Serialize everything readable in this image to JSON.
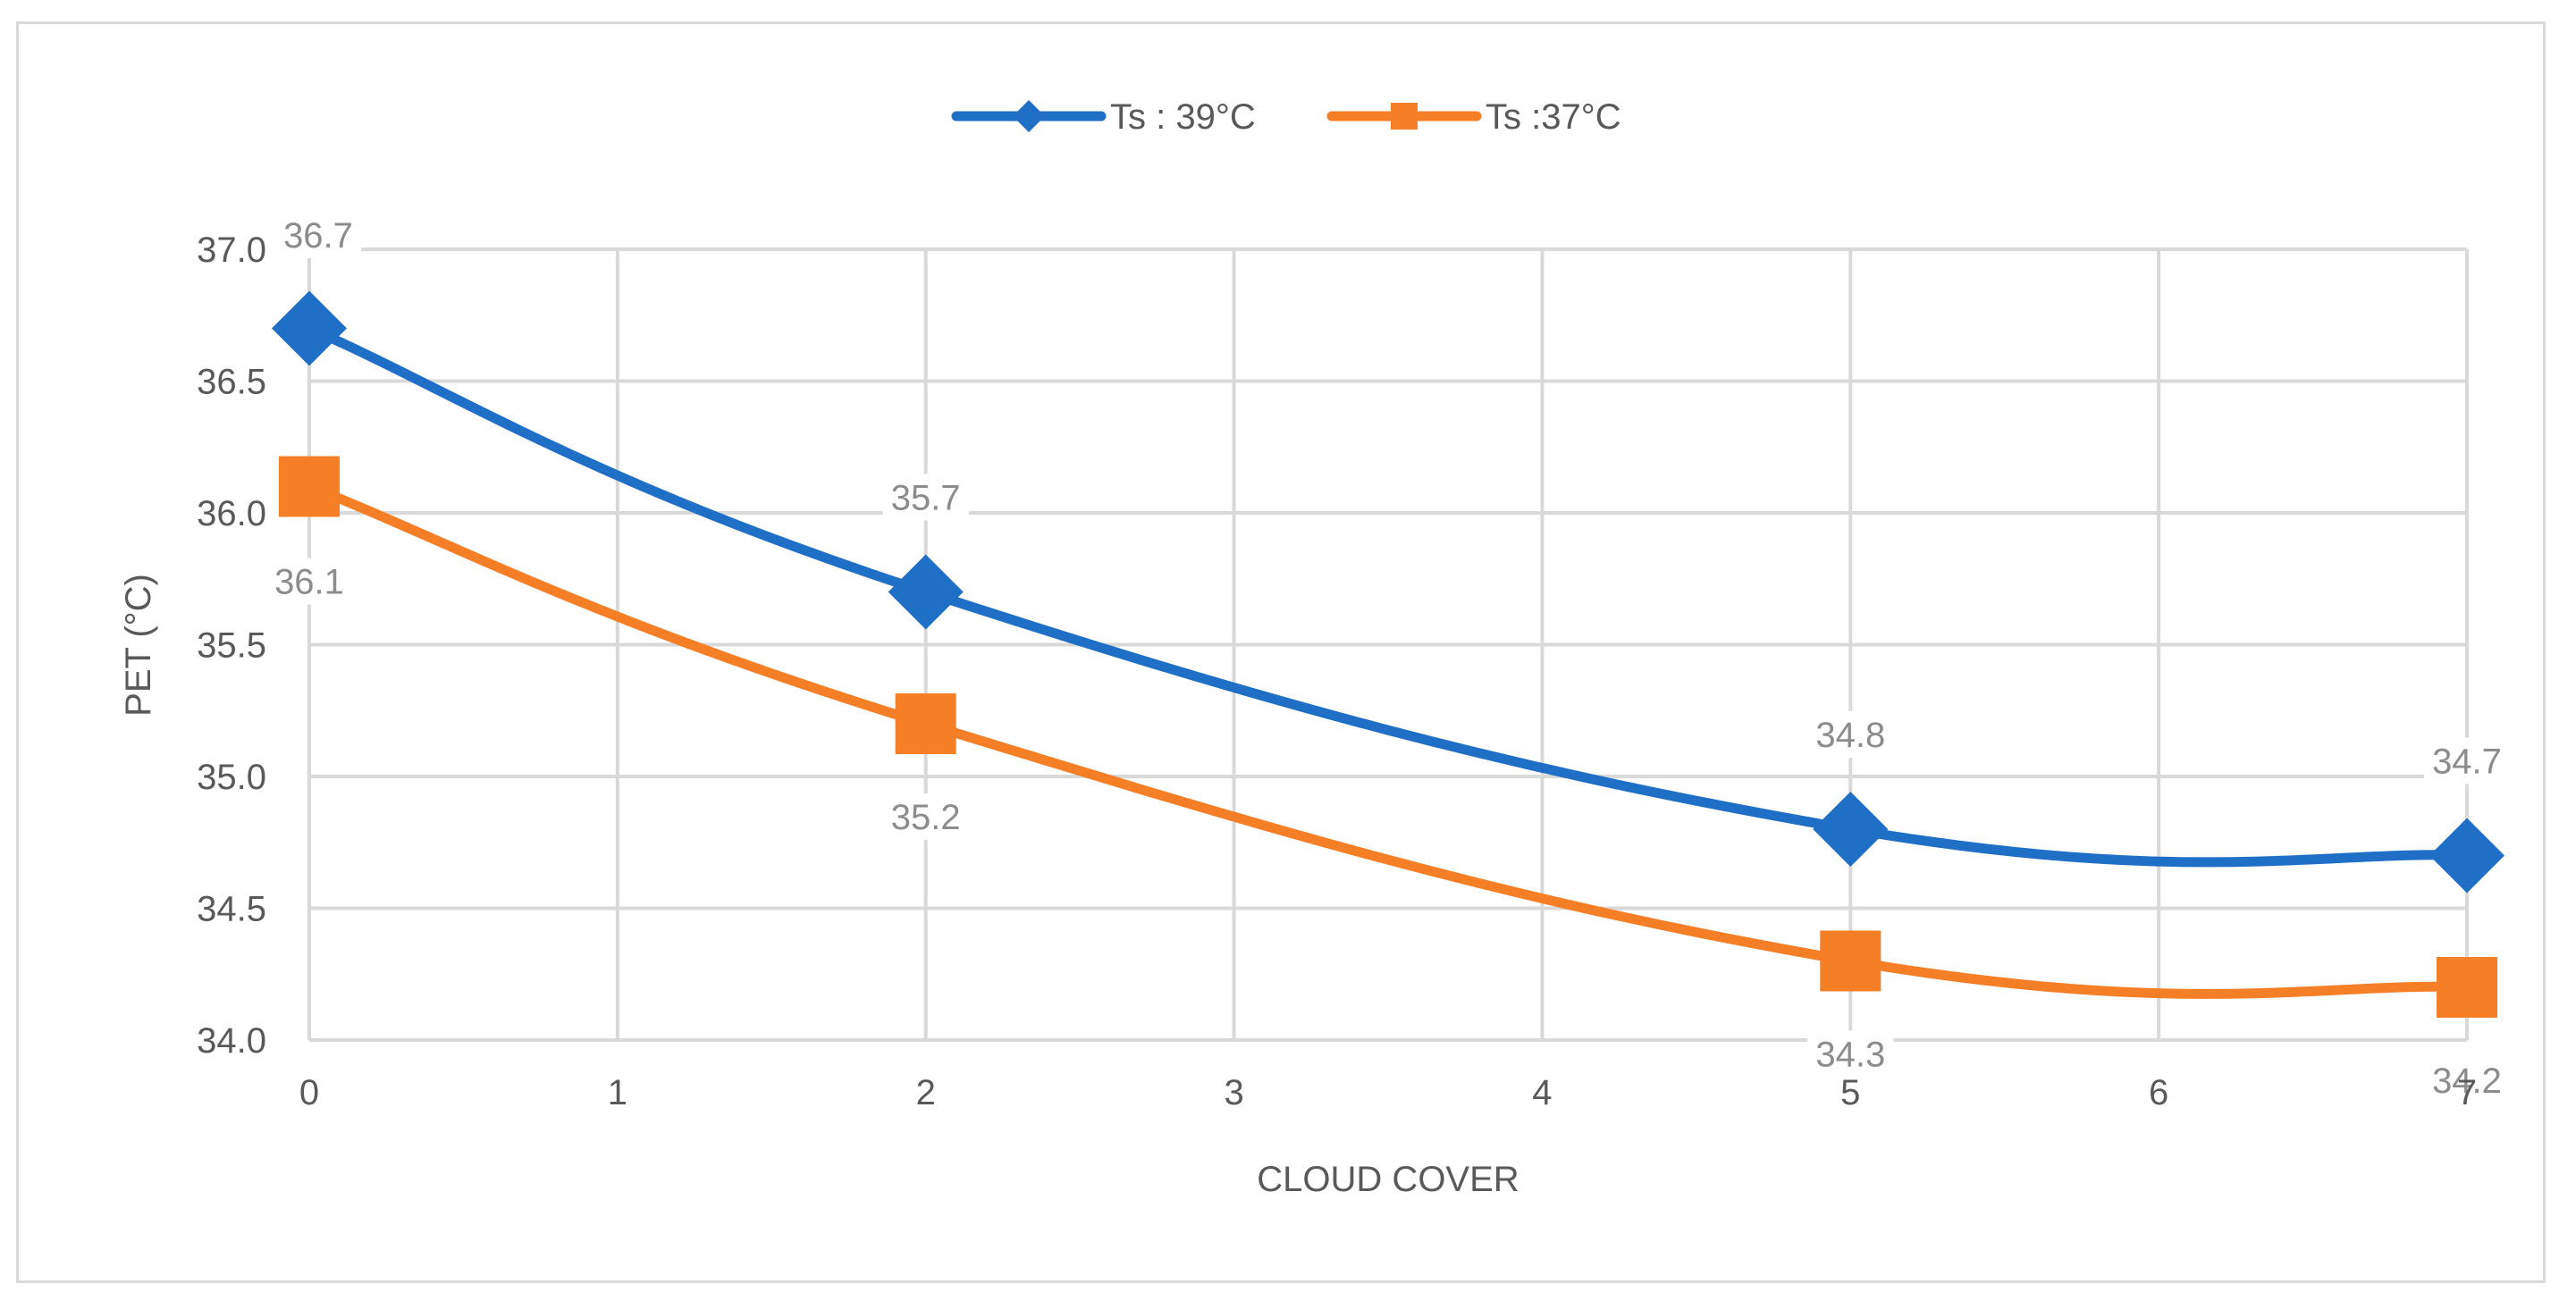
{
  "chart_data": {
    "type": "line",
    "x": [
      0,
      2,
      5,
      7
    ],
    "series": [
      {
        "name": "Ts : 39°C",
        "color": "#1f6fc6",
        "marker": "diamond",
        "values": [
          36.7,
          35.7,
          34.8,
          34.7
        ],
        "labels": [
          "36.7",
          "35.7",
          "34.8",
          "34.7"
        ]
      },
      {
        "name": "Ts :37°C",
        "color": "#f57f27",
        "marker": "square",
        "values": [
          36.1,
          35.2,
          34.3,
          34.2
        ],
        "labels": [
          "36.1",
          "35.2",
          "34.3",
          "34.2"
        ]
      }
    ],
    "xlabel": "CLOUD COVER",
    "ylabel": "PET (°C)",
    "xlim": [
      0,
      7
    ],
    "ylim": [
      34.0,
      37.0
    ],
    "x_ticks": [
      "0",
      "1",
      "2",
      "3",
      "4",
      "5",
      "6",
      "7"
    ],
    "y_ticks": [
      "34.0",
      "34.5",
      "35.0",
      "35.5",
      "36.0",
      "36.5",
      "37.0"
    ],
    "grid": true,
    "smooth": true,
    "legend_position": "top-center",
    "gridline_color": "#d9d9d9"
  }
}
